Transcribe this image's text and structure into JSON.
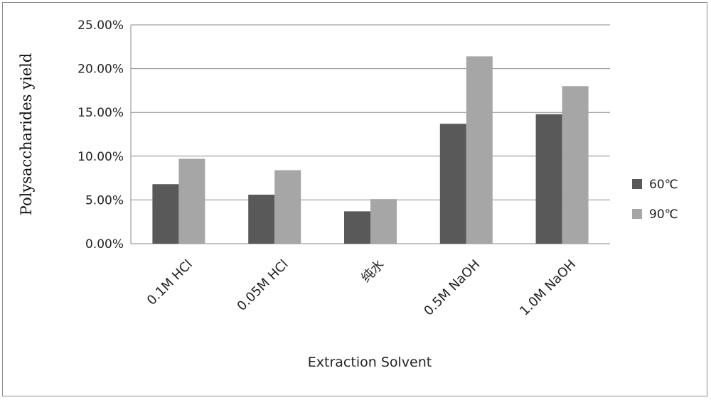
{
  "chart_data": {
    "type": "bar",
    "title": "",
    "xlabel": "Extraction Solvent",
    "ylabel": "Polysaccharides yield",
    "categories": [
      "0.1M HCl",
      "0.05M HCl",
      "纯水",
      "0.5M NaOH",
      "1.0M NaOH"
    ],
    "series": [
      {
        "name": "60℃",
        "color": "#595959",
        "values": [
          0.068,
          0.056,
          0.037,
          0.137,
          0.148
        ]
      },
      {
        "name": "90℃",
        "color": "#a6a6a6",
        "values": [
          0.097,
          0.084,
          0.051,
          0.214,
          0.18
        ]
      }
    ],
    "ylim": [
      0,
      0.25
    ],
    "yticks": [
      0,
      0.05,
      0.1,
      0.15,
      0.2,
      0.25
    ],
    "ytick_labels": [
      "0.00%",
      "5.00%",
      "10.00%",
      "15.00%",
      "20.00%",
      "25.00%"
    ],
    "grid": true,
    "legend_position": "right"
  }
}
